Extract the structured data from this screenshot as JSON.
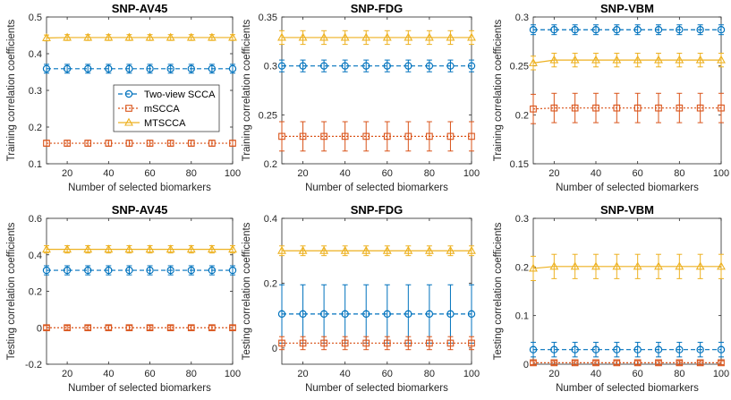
{
  "colors": {
    "two_view": "#0072BD",
    "mscca": "#D95319",
    "mtscca": "#EDB120"
  },
  "chart_data": [
    {
      "type": "line",
      "title": "SNP-AV45",
      "xlabel": "Number of selected biomarkers",
      "ylabel": "Training correlation coefficients",
      "xlim": [
        10,
        100
      ],
      "ylim": [
        0.1,
        0.5
      ],
      "xticks": [
        "20",
        "40",
        "60",
        "80",
        "100"
      ],
      "yticks": [
        "0.1",
        "0.2",
        "0.3",
        "0.4",
        "0.5"
      ],
      "x": [
        10,
        20,
        30,
        40,
        50,
        60,
        70,
        80,
        90,
        100
      ],
      "series": [
        {
          "name": "Two-view SCCA",
          "y": [
            0.359,
            0.359,
            0.359,
            0.359,
            0.359,
            0.359,
            0.359,
            0.359,
            0.359,
            0.359
          ],
          "err": [
            0.012,
            0.012,
            0.012,
            0.012,
            0.012,
            0.012,
            0.012,
            0.012,
            0.012,
            0.012
          ]
        },
        {
          "name": "mSCCA",
          "y": [
            0.156,
            0.156,
            0.156,
            0.156,
            0.156,
            0.156,
            0.156,
            0.156,
            0.156,
            0.156
          ],
          "err": [
            0.008,
            0.008,
            0.008,
            0.008,
            0.008,
            0.008,
            0.008,
            0.008,
            0.008,
            0.008
          ]
        },
        {
          "name": "MTSCCA",
          "y": [
            0.443,
            0.444,
            0.444,
            0.444,
            0.444,
            0.444,
            0.444,
            0.444,
            0.444,
            0.444
          ],
          "err": [
            0.008,
            0.008,
            0.008,
            0.008,
            0.008,
            0.008,
            0.008,
            0.008,
            0.008,
            0.008
          ]
        }
      ],
      "legend": "inside-left"
    },
    {
      "type": "line",
      "title": "SNP-FDG",
      "xlabel": "Number of selected biomarkers",
      "ylabel": "Training correlation coefficients",
      "xlim": [
        10,
        100
      ],
      "ylim": [
        0.2,
        0.35
      ],
      "xticks": [
        "20",
        "40",
        "60",
        "80",
        "100"
      ],
      "yticks": [
        "0.2",
        "0.25",
        "0.3",
        "0.35"
      ],
      "x": [
        10,
        20,
        30,
        40,
        50,
        60,
        70,
        80,
        90,
        100
      ],
      "series": [
        {
          "name": "Two-view SCCA",
          "y": [
            0.3,
            0.3,
            0.3,
            0.3,
            0.3,
            0.3,
            0.3,
            0.3,
            0.3,
            0.3
          ],
          "err": [
            0.006,
            0.006,
            0.006,
            0.006,
            0.006,
            0.006,
            0.006,
            0.006,
            0.006,
            0.006
          ]
        },
        {
          "name": "mSCCA",
          "y": [
            0.228,
            0.228,
            0.228,
            0.228,
            0.228,
            0.228,
            0.228,
            0.228,
            0.228,
            0.228
          ],
          "err": [
            0.015,
            0.015,
            0.015,
            0.015,
            0.015,
            0.015,
            0.015,
            0.015,
            0.015,
            0.015
          ]
        },
        {
          "name": "MTSCCA",
          "y": [
            0.329,
            0.329,
            0.329,
            0.329,
            0.329,
            0.329,
            0.329,
            0.329,
            0.329,
            0.329
          ],
          "err": [
            0.007,
            0.007,
            0.007,
            0.007,
            0.007,
            0.007,
            0.007,
            0.007,
            0.007,
            0.007
          ]
        }
      ]
    },
    {
      "type": "line",
      "title": "SNP-VBM",
      "xlabel": "Number of selected biomarkers",
      "ylabel": "Training correlation coefficients",
      "xlim": [
        10,
        100
      ],
      "ylim": [
        0.15,
        0.3
      ],
      "xticks": [
        "20",
        "40",
        "60",
        "80",
        "100"
      ],
      "yticks": [
        "0.15",
        "0.2",
        "0.25",
        "0.3"
      ],
      "x": [
        10,
        20,
        30,
        40,
        50,
        60,
        70,
        80,
        90,
        100
      ],
      "series": [
        {
          "name": "Two-view SCCA",
          "y": [
            0.287,
            0.287,
            0.287,
            0.287,
            0.287,
            0.287,
            0.287,
            0.287,
            0.287,
            0.287
          ],
          "err": [
            0.005,
            0.005,
            0.005,
            0.005,
            0.005,
            0.005,
            0.005,
            0.005,
            0.005,
            0.005
          ]
        },
        {
          "name": "mSCCA",
          "y": [
            0.206,
            0.207,
            0.207,
            0.207,
            0.207,
            0.207,
            0.207,
            0.207,
            0.207,
            0.207
          ],
          "err": [
            0.015,
            0.015,
            0.015,
            0.015,
            0.015,
            0.015,
            0.015,
            0.015,
            0.015,
            0.015
          ]
        },
        {
          "name": "MTSCCA",
          "y": [
            0.253,
            0.256,
            0.256,
            0.256,
            0.256,
            0.256,
            0.256,
            0.256,
            0.256,
            0.256
          ],
          "err": [
            0.007,
            0.007,
            0.007,
            0.007,
            0.007,
            0.007,
            0.007,
            0.007,
            0.007,
            0.007
          ]
        }
      ]
    },
    {
      "type": "line",
      "title": "SNP-AV45",
      "xlabel": "Number of selected biomarkers",
      "ylabel": "Testing correlation coefficients",
      "xlim": [
        10,
        100
      ],
      "ylim": [
        -0.2,
        0.6
      ],
      "xticks": [
        "20",
        "40",
        "60",
        "80",
        "100"
      ],
      "yticks": [
        "-0.2",
        "0",
        "0.2",
        "0.4",
        "0.6"
      ],
      "x": [
        10,
        20,
        30,
        40,
        50,
        60,
        70,
        80,
        90,
        100
      ],
      "series": [
        {
          "name": "Two-view SCCA",
          "y": [
            0.315,
            0.315,
            0.315,
            0.315,
            0.315,
            0.315,
            0.315,
            0.315,
            0.315,
            0.315
          ],
          "err": [
            0.025,
            0.025,
            0.025,
            0.025,
            0.025,
            0.025,
            0.025,
            0.025,
            0.025,
            0.025
          ]
        },
        {
          "name": "mSCCA",
          "y": [
            0.0,
            0.0,
            0.0,
            0.0,
            0.0,
            0.0,
            0.0,
            0.0,
            0.0,
            0.0
          ],
          "err": [
            0.012,
            0.012,
            0.012,
            0.012,
            0.012,
            0.012,
            0.012,
            0.012,
            0.012,
            0.012
          ]
        },
        {
          "name": "MTSCCA",
          "y": [
            0.43,
            0.43,
            0.43,
            0.43,
            0.43,
            0.43,
            0.43,
            0.43,
            0.43,
            0.43
          ],
          "err": [
            0.02,
            0.02,
            0.02,
            0.02,
            0.02,
            0.02,
            0.02,
            0.02,
            0.02,
            0.02
          ]
        }
      ]
    },
    {
      "type": "line",
      "title": "SNP-FDG",
      "xlabel": "Number of selected biomarkers",
      "ylabel": "Testing correlation coefficients",
      "xlim": [
        10,
        100
      ],
      "ylim": [
        -0.05,
        0.4
      ],
      "xticks": [
        "20",
        "40",
        "60",
        "80",
        "100"
      ],
      "yticks": [
        "0",
        "0.2",
        "0.4"
      ],
      "x": [
        10,
        20,
        30,
        40,
        50,
        60,
        70,
        80,
        90,
        100
      ],
      "series": [
        {
          "name": "Two-view SCCA",
          "y": [
            0.105,
            0.105,
            0.105,
            0.105,
            0.105,
            0.105,
            0.105,
            0.105,
            0.105,
            0.105
          ],
          "err": [
            0.09,
            0.09,
            0.09,
            0.09,
            0.09,
            0.09,
            0.09,
            0.09,
            0.09,
            0.09
          ]
        },
        {
          "name": "mSCCA",
          "y": [
            0.015,
            0.015,
            0.015,
            0.015,
            0.015,
            0.015,
            0.015,
            0.015,
            0.015,
            0.015
          ],
          "err": [
            0.02,
            0.02,
            0.02,
            0.02,
            0.02,
            0.02,
            0.02,
            0.02,
            0.02,
            0.02
          ]
        },
        {
          "name": "MTSCCA",
          "y": [
            0.3,
            0.3,
            0.3,
            0.3,
            0.3,
            0.3,
            0.3,
            0.3,
            0.3,
            0.3
          ],
          "err": [
            0.015,
            0.015,
            0.015,
            0.015,
            0.015,
            0.015,
            0.015,
            0.015,
            0.015,
            0.015
          ]
        }
      ]
    },
    {
      "type": "line",
      "title": "SNP-VBM",
      "xlabel": "Number of selected biomarkers",
      "ylabel": "Testing correlation coefficients",
      "xlim": [
        10,
        100
      ],
      "ylim": [
        0,
        0.3
      ],
      "xticks": [
        "20",
        "40",
        "60",
        "80",
        "100"
      ],
      "yticks": [
        "0",
        "0.1",
        "0.2",
        "0.3"
      ],
      "x": [
        10,
        20,
        30,
        40,
        50,
        60,
        70,
        80,
        90,
        100
      ],
      "series": [
        {
          "name": "Two-view SCCA",
          "y": [
            0.03,
            0.03,
            0.03,
            0.03,
            0.03,
            0.03,
            0.03,
            0.03,
            0.03,
            0.03
          ],
          "err": [
            0.015,
            0.015,
            0.015,
            0.015,
            0.015,
            0.015,
            0.015,
            0.015,
            0.015,
            0.015
          ]
        },
        {
          "name": "mSCCA",
          "y": [
            0.003,
            0.003,
            0.003,
            0.003,
            0.003,
            0.003,
            0.003,
            0.003,
            0.003,
            0.003
          ],
          "err": [
            0.004,
            0.004,
            0.004,
            0.004,
            0.004,
            0.004,
            0.004,
            0.004,
            0.004,
            0.004
          ]
        },
        {
          "name": "MTSCCA",
          "y": [
            0.197,
            0.201,
            0.201,
            0.201,
            0.201,
            0.201,
            0.201,
            0.201,
            0.201,
            0.201
          ],
          "err": [
            0.025,
            0.025,
            0.025,
            0.025,
            0.025,
            0.025,
            0.025,
            0.025,
            0.025,
            0.025
          ]
        }
      ]
    }
  ]
}
